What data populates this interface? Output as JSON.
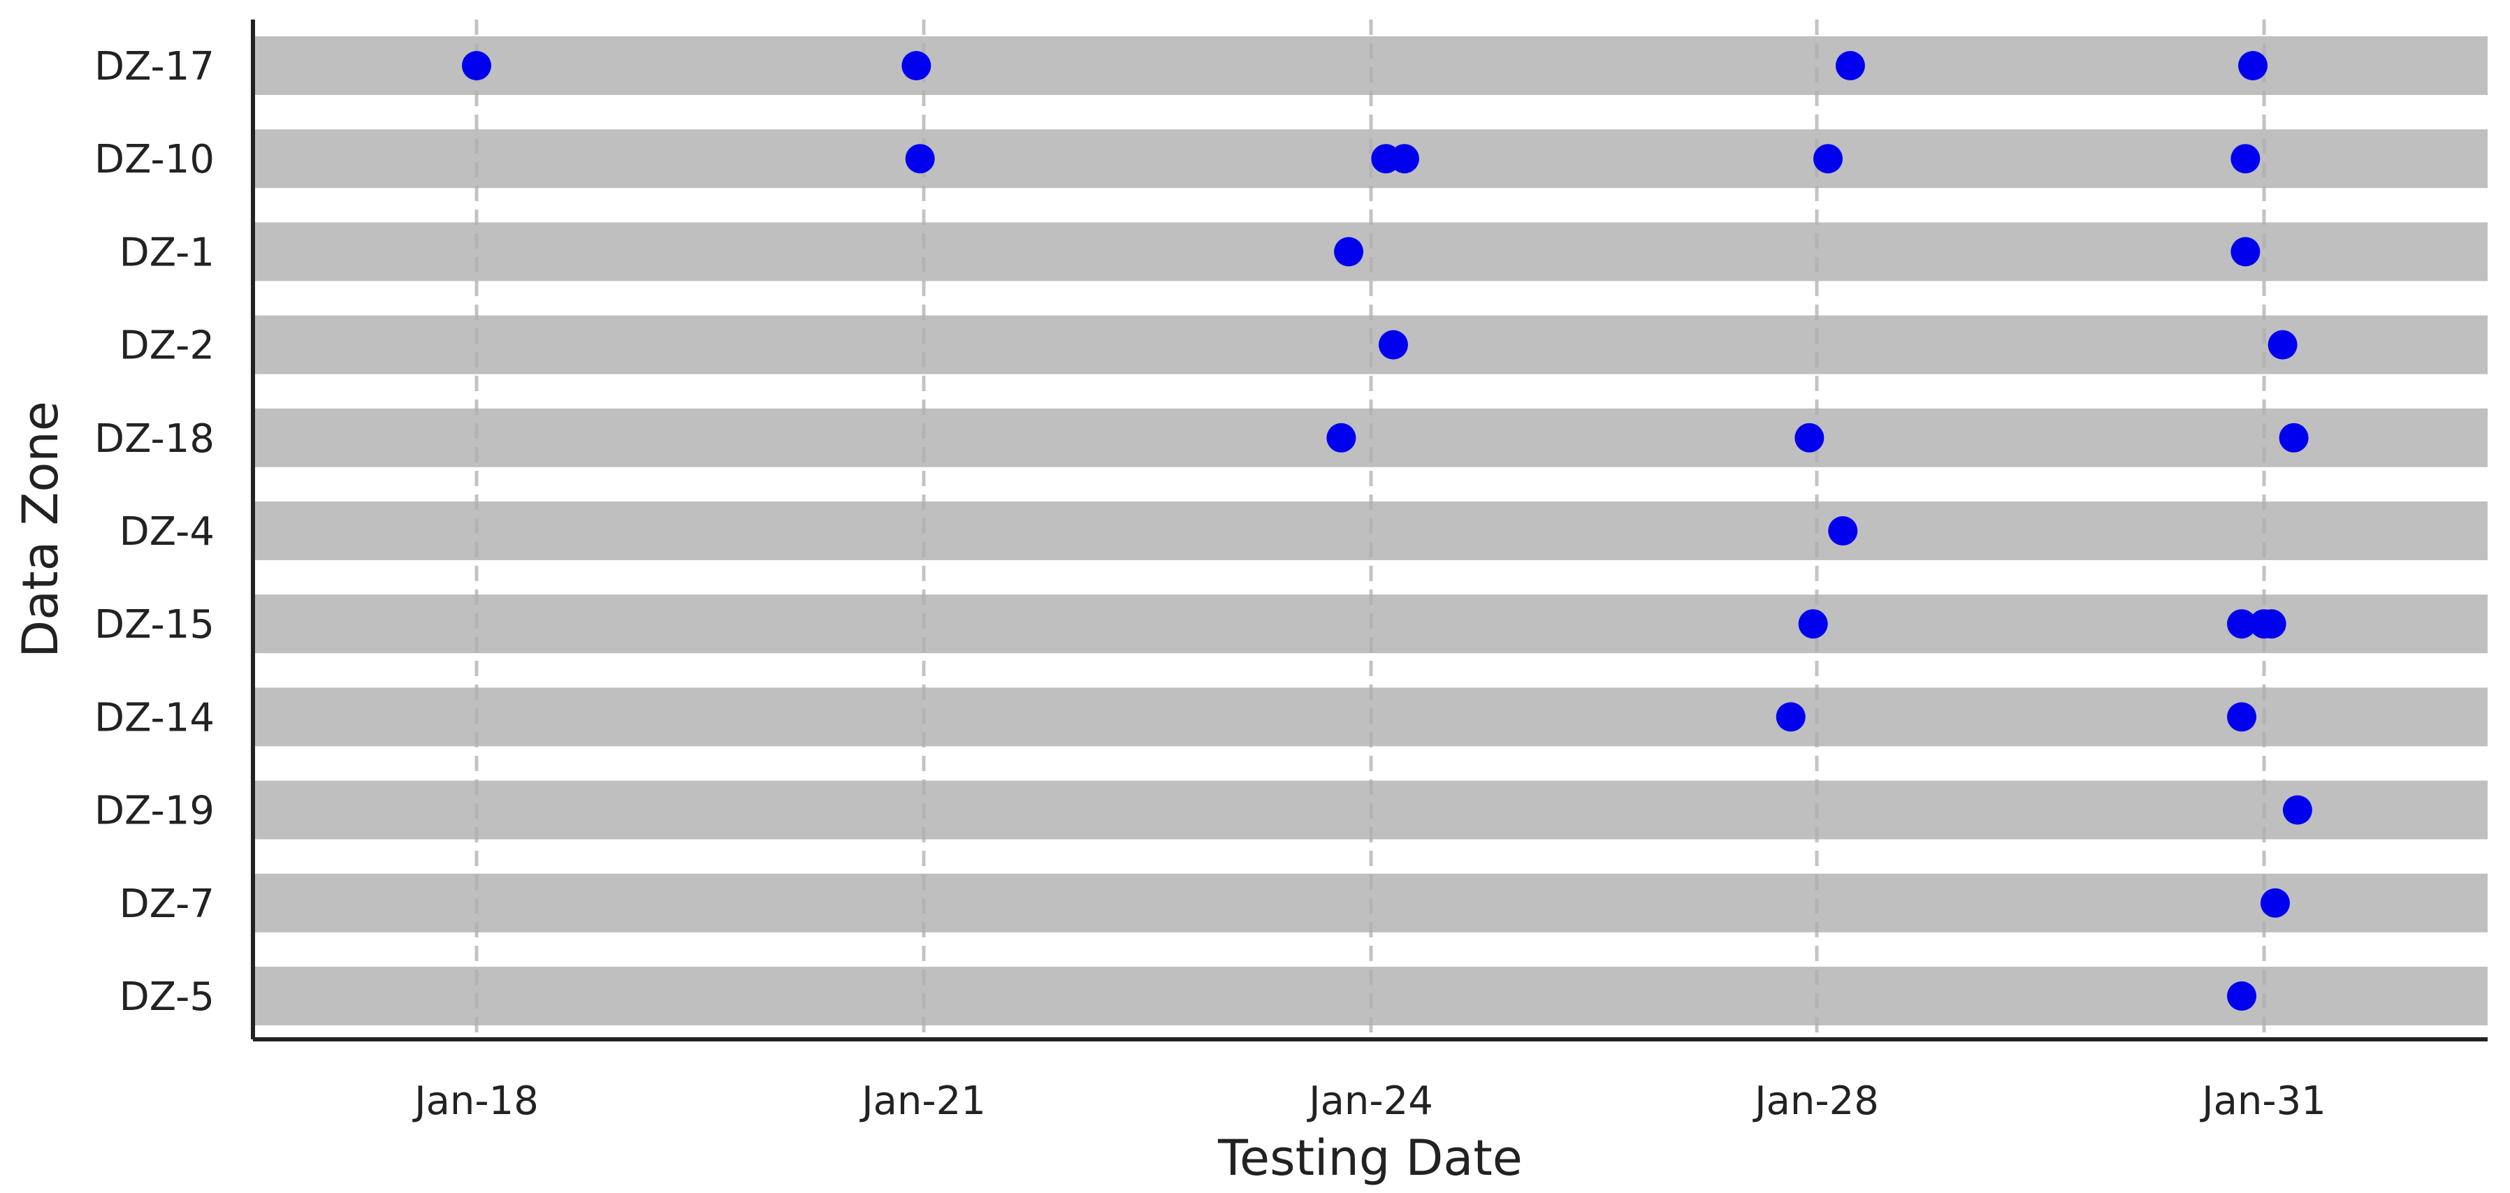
{
  "chart_data": {
    "type": "scatter",
    "xlabel": "Testing Date",
    "ylabel": "Data Zone",
    "x_ticks": [
      "Jan-18",
      "Jan-21",
      "Jan-24",
      "Jan-28",
      "Jan-31"
    ],
    "categories": [
      "DZ-17",
      "DZ-10",
      "DZ-1",
      "DZ-2",
      "DZ-18",
      "DZ-4",
      "DZ-15",
      "DZ-14",
      "DZ-19",
      "DZ-7",
      "DZ-5"
    ],
    "xlim": [
      "Jan-16",
      "Jan-31"
    ],
    "grid": "vertical dashed at x ticks",
    "colors": {
      "point": "#0000ee",
      "band": "#bfbfbf",
      "grid": "#b0b0b0",
      "axis": "#222222"
    },
    "points": [
      {
        "zone": "DZ-17",
        "tick": 0,
        "offset": 0.0
      },
      {
        "zone": "DZ-17",
        "tick": 1,
        "offset": -0.02
      },
      {
        "zone": "DZ-17",
        "tick": 3,
        "offset": 0.09
      },
      {
        "zone": "DZ-17",
        "tick": 4,
        "offset": -0.03
      },
      {
        "zone": "DZ-10",
        "tick": 1,
        "offset": -0.01
      },
      {
        "zone": "DZ-10",
        "tick": 2,
        "offset": 0.04
      },
      {
        "zone": "DZ-10",
        "tick": 2,
        "offset": 0.09
      },
      {
        "zone": "DZ-10",
        "tick": 3,
        "offset": 0.03
      },
      {
        "zone": "DZ-10",
        "tick": 4,
        "offset": -0.05
      },
      {
        "zone": "DZ-1",
        "tick": 2,
        "offset": -0.06
      },
      {
        "zone": "DZ-1",
        "tick": 4,
        "offset": -0.05
      },
      {
        "zone": "DZ-2",
        "tick": 2,
        "offset": 0.06
      },
      {
        "zone": "DZ-2",
        "tick": 4,
        "offset": 0.05
      },
      {
        "zone": "DZ-18",
        "tick": 2,
        "offset": -0.08
      },
      {
        "zone": "DZ-18",
        "tick": 3,
        "offset": -0.02
      },
      {
        "zone": "DZ-18",
        "tick": 4,
        "offset": 0.08
      },
      {
        "zone": "DZ-4",
        "tick": 3,
        "offset": 0.07
      },
      {
        "zone": "DZ-15",
        "tick": 3,
        "offset": -0.01
      },
      {
        "zone": "DZ-15",
        "tick": 4,
        "offset": -0.06
      },
      {
        "zone": "DZ-15",
        "tick": 4,
        "offset": 0.0
      },
      {
        "zone": "DZ-15",
        "tick": 4,
        "offset": 0.02
      },
      {
        "zone": "DZ-14",
        "tick": 3,
        "offset": -0.07
      },
      {
        "zone": "DZ-14",
        "tick": 4,
        "offset": -0.06
      },
      {
        "zone": "DZ-19",
        "tick": 4,
        "offset": 0.09
      },
      {
        "zone": "DZ-7",
        "tick": 4,
        "offset": 0.03
      },
      {
        "zone": "DZ-5",
        "tick": 4,
        "offset": -0.06
      }
    ]
  }
}
